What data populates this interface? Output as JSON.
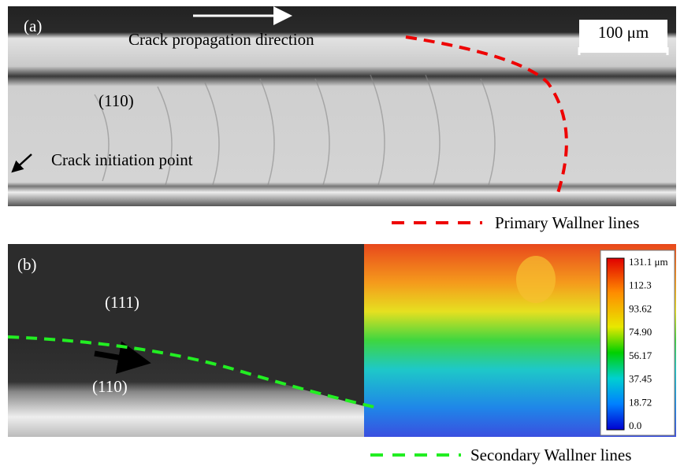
{
  "panel_a": {
    "label": "(a)",
    "direction_text": "Crack propagation direction",
    "scale_bar": "100 μm",
    "plane": "(110)",
    "initiation_text": "Crack initiation point",
    "legend": "Primary Wallner lines"
  },
  "panel_b": {
    "label": "(b)",
    "plane_top": "(111)",
    "plane_bottom": "(110)",
    "legend": "Secondary Wallner lines",
    "colorbar_labels": [
      "131.1 μm",
      "112.3",
      "93.62",
      "74.90",
      "56.17",
      "37.45",
      "18.72",
      "0.0"
    ]
  }
}
